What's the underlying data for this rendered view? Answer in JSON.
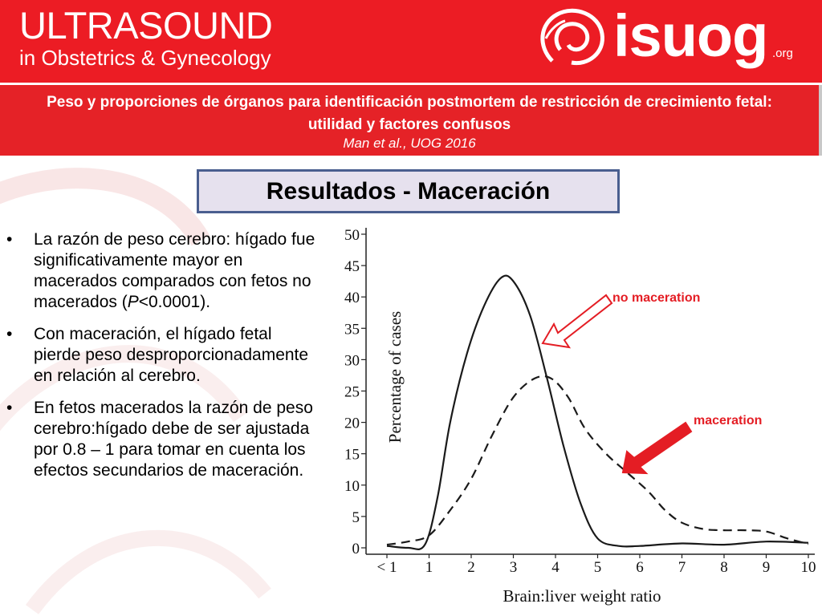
{
  "header": {
    "title": "ULTRASOUND",
    "subtitle": "in Obstetrics & Gynecology",
    "logo_text": "isuog",
    "logo_suffix": ".org"
  },
  "paper": {
    "title": "Peso y proporciones de órganos para identificación postmortem de restricción de crecimiento fetal: utilidad y factores confusos",
    "citation": "Man et al., UOG 2016"
  },
  "section_title": "Resultados - Maceración",
  "bullets": [
    {
      "before": "La razón de peso cerebro: hígado fue significativamente mayor en macerados comparados con fetos no macerados (",
      "italic": "P",
      "after": "<0.0001)."
    },
    {
      "text": "Con maceración, el hígado fetal pierde peso desproporcionadamente en relación al cerebro."
    },
    {
      "text": "En fetos macerados la razón de peso cerebro:hígado debe de ser ajustada por 0.8 – 1 para tomar en cuenta los efectos secundarios de maceración."
    }
  ],
  "colors": {
    "brand_red": "#ec1c24",
    "box_border": "#4a5e8f",
    "box_fill": "#e6e1ee"
  },
  "chart_data": {
    "type": "line",
    "xlabel": "Brain:liver weight ratio",
    "ylabel": "Percentage of cases",
    "x_ticks": [
      "< 1",
      "1",
      "2",
      "3",
      "4",
      "5",
      "6",
      "7",
      "8",
      "9",
      "10"
    ],
    "y_ticks": [
      "0",
      "5",
      "10",
      "15",
      "20",
      "25",
      "30",
      "35",
      "40",
      "45",
      "50"
    ],
    "xlim": [
      0,
      10
    ],
    "ylim": [
      0,
      50
    ],
    "series": [
      {
        "name": "no maceration",
        "style": "solid",
        "points": [
          [
            0,
            0.3
          ],
          [
            0.5,
            0
          ],
          [
            0.9,
            0.5
          ],
          [
            1.2,
            8
          ],
          [
            1.5,
            20
          ],
          [
            1.9,
            31
          ],
          [
            2.3,
            38.5
          ],
          [
            2.7,
            43
          ],
          [
            3.0,
            42.5
          ],
          [
            3.4,
            37
          ],
          [
            3.8,
            27
          ],
          [
            4.2,
            16
          ],
          [
            4.6,
            7
          ],
          [
            5.0,
            1.5
          ],
          [
            5.5,
            0.3
          ],
          [
            6.0,
            0.3
          ],
          [
            7.0,
            0.7
          ],
          [
            8.0,
            0.5
          ],
          [
            9.0,
            1
          ],
          [
            10.0,
            0.8
          ]
        ]
      },
      {
        "name": "maceration",
        "style": "dashed",
        "points": [
          [
            0,
            0.5
          ],
          [
            0.5,
            1
          ],
          [
            1.0,
            2
          ],
          [
            1.5,
            6
          ],
          [
            2.0,
            11
          ],
          [
            2.5,
            18
          ],
          [
            3.0,
            24
          ],
          [
            3.5,
            27
          ],
          [
            3.9,
            27
          ],
          [
            4.3,
            24
          ],
          [
            4.7,
            19
          ],
          [
            5.2,
            15
          ],
          [
            5.7,
            12
          ],
          [
            6.2,
            9
          ],
          [
            6.6,
            6
          ],
          [
            7.0,
            4
          ],
          [
            7.5,
            3
          ],
          [
            8.0,
            2.8
          ],
          [
            8.5,
            2.8
          ],
          [
            9.0,
            2.6
          ],
          [
            9.5,
            1.5
          ],
          [
            10.0,
            0.6
          ]
        ]
      }
    ],
    "annotations": [
      {
        "text": "no maceration",
        "target_series": "no maceration",
        "arrow": "outline"
      },
      {
        "text": "maceration",
        "target_series": "maceration",
        "arrow": "filled"
      }
    ],
    "grid": false
  }
}
